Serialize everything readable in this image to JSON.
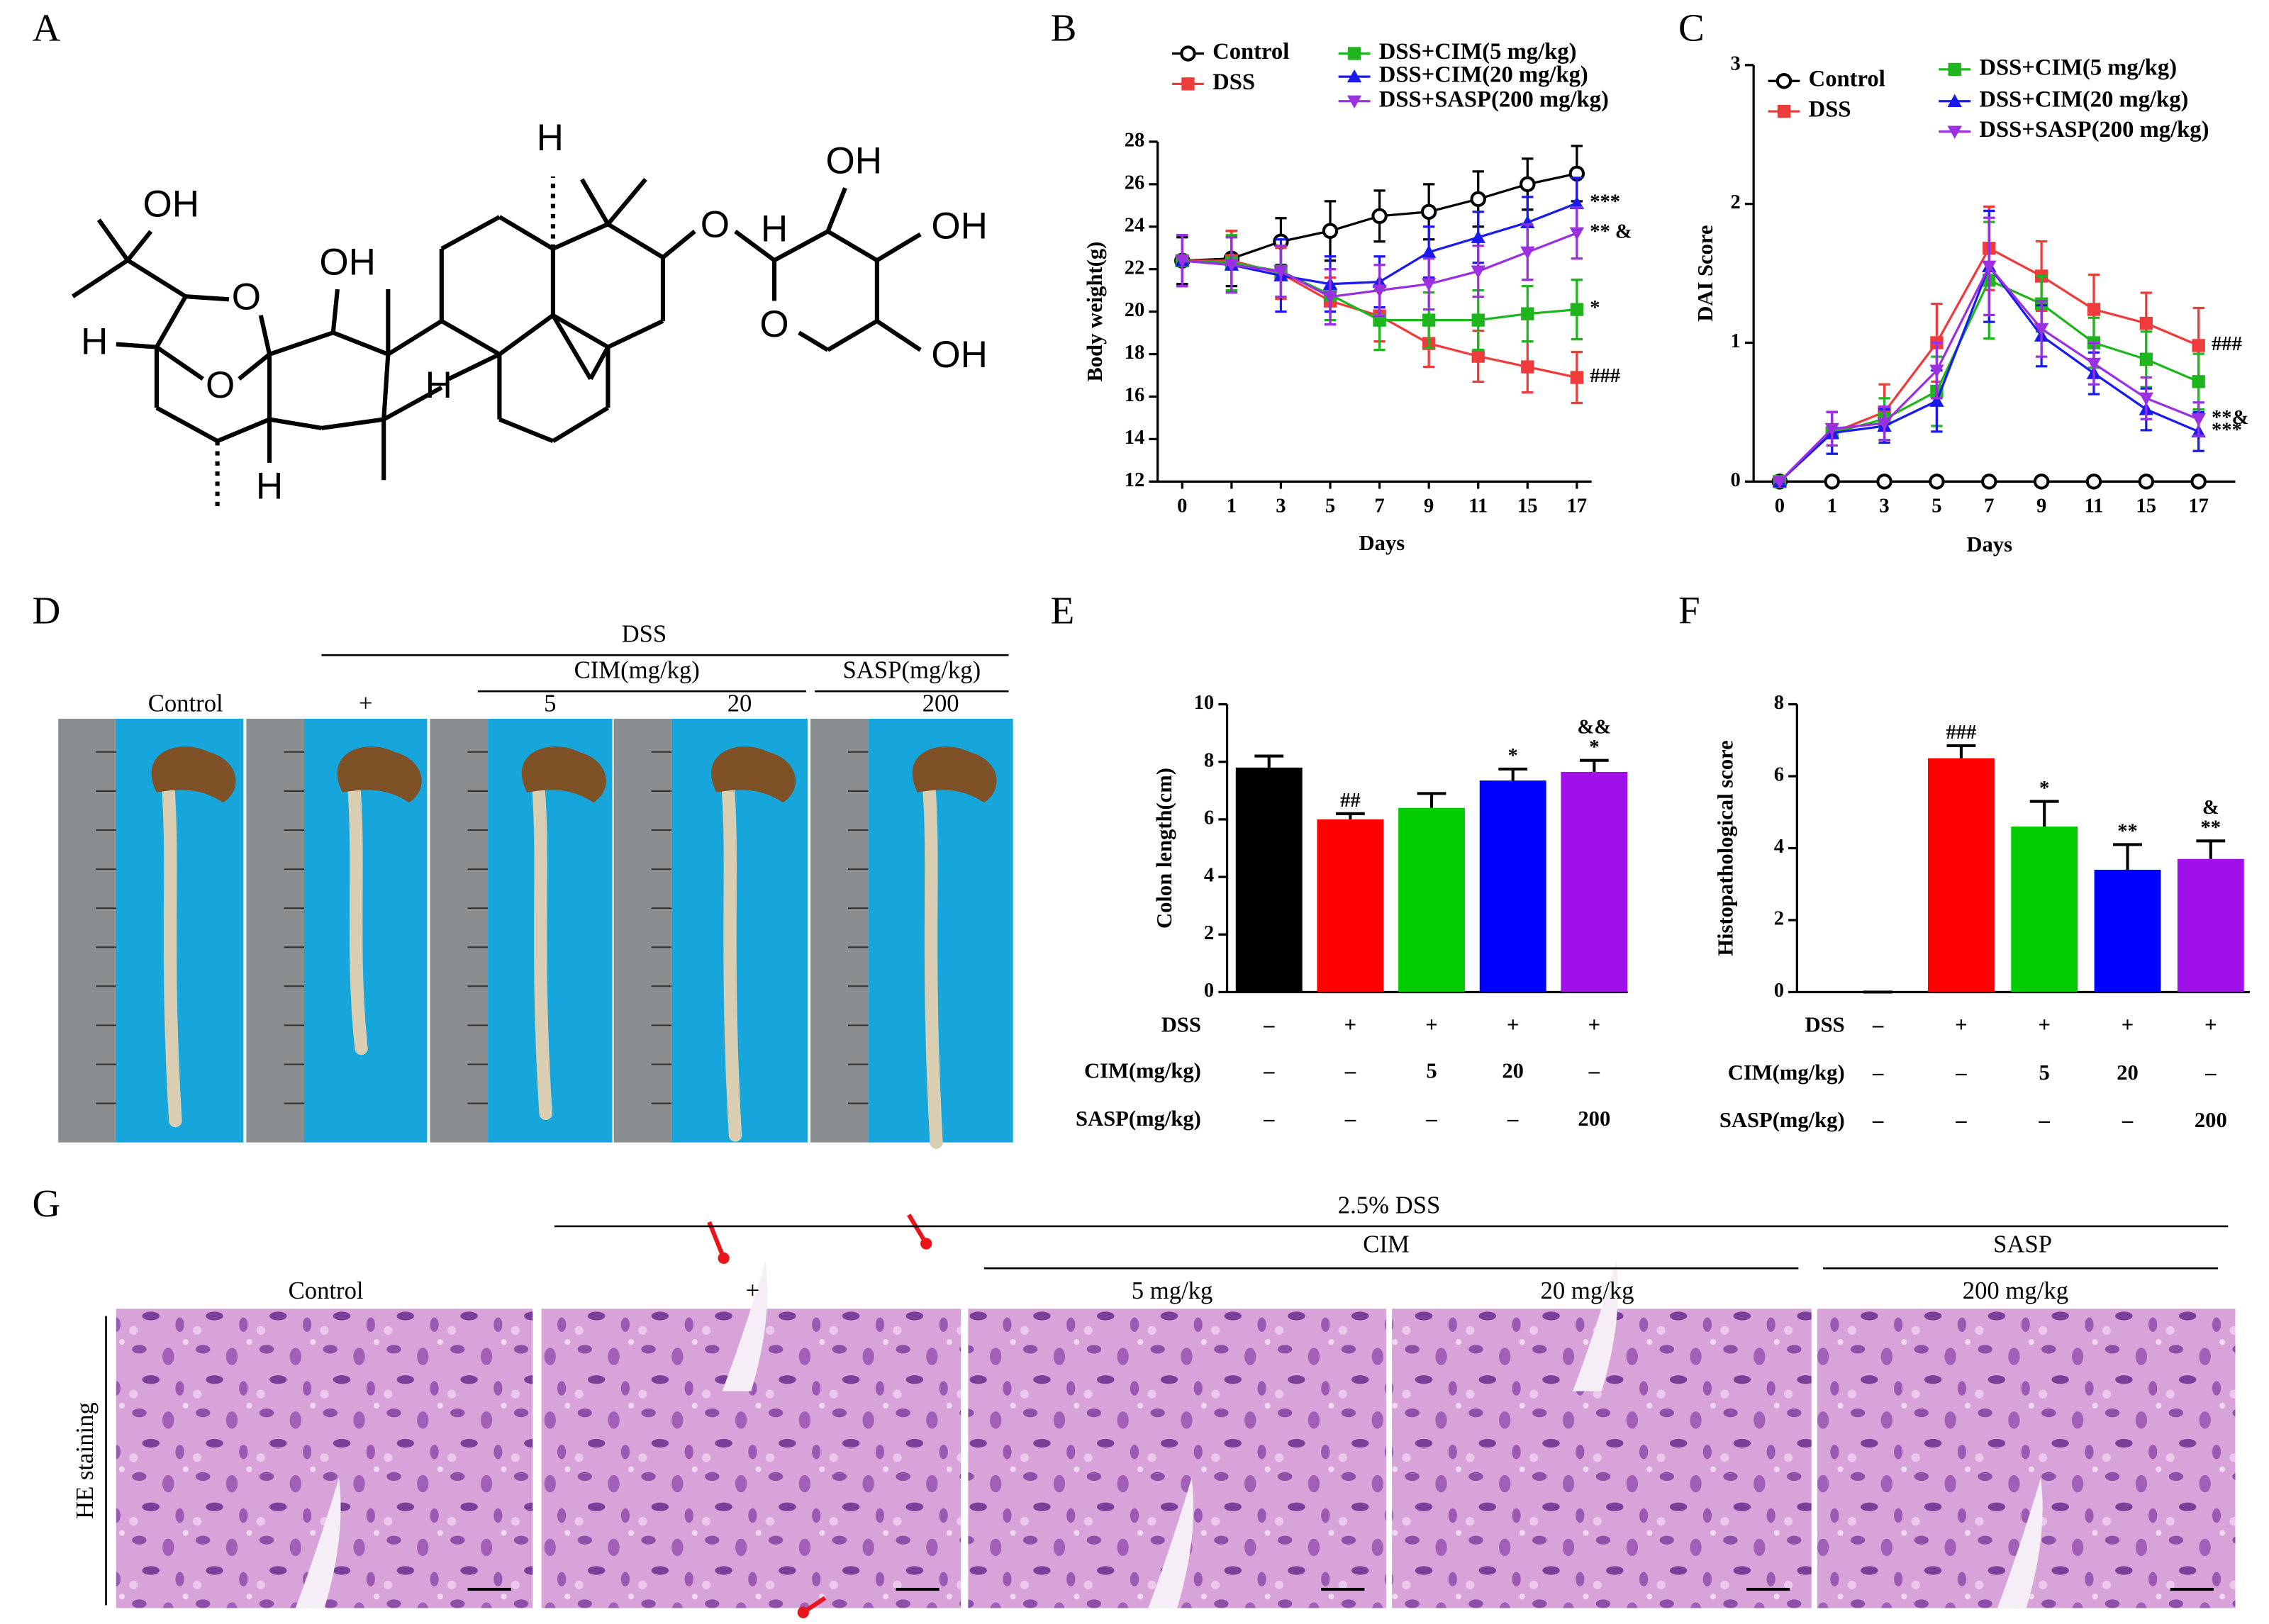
{
  "panel_labels": [
    "A",
    "B",
    "C",
    "D",
    "E",
    "F",
    "G"
  ],
  "structure": {
    "labels": [
      "OH",
      "O",
      "H",
      "O",
      "OH",
      "H",
      "H",
      "H",
      "O",
      "H",
      "OH",
      "OH",
      "O",
      "OH"
    ]
  },
  "chart_data": [
    {
      "type": "line",
      "ylabel": "Body weight(g)",
      "xlabel": "Days",
      "categories": [
        "0",
        "1",
        "3",
        "5",
        "7",
        "9",
        "11",
        "15",
        "17"
      ],
      "ylim": [
        12,
        28
      ],
      "yticks": [
        12,
        14,
        16,
        18,
        20,
        22,
        24,
        26,
        28
      ],
      "series": [
        {
          "name": "Control",
          "color": "#000000",
          "marker": "circle",
          "values": [
            22.4,
            22.5,
            23.3,
            23.8,
            24.5,
            24.7,
            25.3,
            26.0,
            26.5
          ],
          "errors": [
            1.1,
            1.3,
            1.1,
            1.4,
            1.2,
            1.3,
            1.3,
            1.2,
            1.3
          ],
          "annotation": null
        },
        {
          "name": "DSS",
          "color": "#ee3b3b",
          "marker": "square",
          "values": [
            22.4,
            22.4,
            21.8,
            20.5,
            19.8,
            18.5,
            17.9,
            17.4,
            16.9
          ],
          "errors": [
            1.2,
            1.4,
            1.2,
            1.1,
            1.2,
            1.1,
            1.2,
            1.2,
            1.2
          ],
          "annotation": "###"
        },
        {
          "name": "DSS+CIM(5 mg/kg)",
          "color": "#1fb51f",
          "marker": "square",
          "values": [
            22.4,
            22.3,
            21.9,
            20.8,
            19.6,
            19.6,
            19.6,
            19.9,
            20.1
          ],
          "errors": [
            1.2,
            1.3,
            1.2,
            1.2,
            1.4,
            1.3,
            1.4,
            1.3,
            1.4
          ],
          "annotation": "*"
        },
        {
          "name": "DSS+CIM(20 mg/kg)",
          "color": "#1a1aee",
          "marker": "triangle-up",
          "values": [
            22.4,
            22.2,
            21.7,
            21.3,
            21.4,
            22.8,
            23.5,
            24.2,
            25.1
          ],
          "errors": [
            1.2,
            1.3,
            1.7,
            1.3,
            1.2,
            1.2,
            1.2,
            1.2,
            1.2
          ],
          "annotation": "***"
        },
        {
          "name": "DSS+SASP(200 mg/kg)",
          "color": "#9b30e0",
          "marker": "triangle-down",
          "values": [
            22.4,
            22.2,
            21.9,
            20.7,
            21.0,
            21.3,
            21.9,
            22.8,
            23.7
          ],
          "errors": [
            1.2,
            1.3,
            1.2,
            1.3,
            1.2,
            1.2,
            1.2,
            1.3,
            1.2
          ],
          "annotation": "** &"
        }
      ]
    },
    {
      "type": "line",
      "ylabel": "DAI Score",
      "xlabel": "Days",
      "categories": [
        "0",
        "1",
        "3",
        "5",
        "7",
        "9",
        "11",
        "15",
        "17"
      ],
      "ylim": [
        0,
        3
      ],
      "yticks": [
        0,
        1,
        2,
        3
      ],
      "series": [
        {
          "name": "Control",
          "color": "#000000",
          "marker": "circle",
          "values": [
            0,
            0,
            0,
            0,
            0,
            0,
            0,
            0,
            0
          ],
          "errors": [
            0,
            0,
            0,
            0,
            0,
            0,
            0,
            0,
            0
          ],
          "annotation": null
        },
        {
          "name": "DSS",
          "color": "#ee3b3b",
          "marker": "square",
          "values": [
            0,
            0.35,
            0.5,
            1.0,
            1.68,
            1.48,
            1.24,
            1.14,
            0.98
          ],
          "errors": [
            0,
            0.15,
            0.2,
            0.28,
            0.3,
            0.25,
            0.25,
            0.22,
            0.27
          ],
          "annotation": "###"
        },
        {
          "name": "DSS+CIM(5 mg/kg)",
          "color": "#1fb51f",
          "marker": "square",
          "values": [
            0,
            0.35,
            0.45,
            0.65,
            1.45,
            1.28,
            1.0,
            0.88,
            0.72
          ],
          "errors": [
            0,
            0.15,
            0.15,
            0.25,
            0.42,
            0.2,
            0.18,
            0.2,
            0.2
          ],
          "annotation": null
        },
        {
          "name": "DSS+CIM(20 mg/kg)",
          "color": "#1a1aee",
          "marker": "triangle-up",
          "values": [
            0,
            0.35,
            0.4,
            0.58,
            1.55,
            1.05,
            0.78,
            0.52,
            0.36
          ],
          "errors": [
            0,
            0.15,
            0.12,
            0.22,
            0.4,
            0.22,
            0.15,
            0.15,
            0.14
          ],
          "annotation": "***"
        },
        {
          "name": "DSS+SASP(200 mg/kg)",
          "color": "#9b30e0",
          "marker": "triangle-down",
          "values": [
            0,
            0.38,
            0.42,
            0.8,
            1.55,
            1.1,
            0.85,
            0.6,
            0.45
          ],
          "errors": [
            0,
            0.12,
            0.12,
            0.2,
            0.35,
            0.2,
            0.15,
            0.15,
            0.12
          ],
          "annotation": "**&"
        }
      ]
    },
    {
      "type": "bar",
      "ylabel": "Colon length(cm)",
      "ylim": [
        0,
        10
      ],
      "yticks": [
        0,
        2,
        4,
        6,
        8,
        10
      ],
      "values": [
        7.8,
        6.0,
        6.4,
        7.35,
        7.65
      ],
      "errors": [
        0.4,
        0.2,
        0.5,
        0.4,
        0.4
      ],
      "colors": [
        "#000000",
        "#ff0000",
        "#00cc00",
        "#0000ff",
        "#a010e8"
      ],
      "annotations": [
        null,
        "##",
        null,
        "*",
        "*"
      ],
      "annotations_top": [
        null,
        null,
        null,
        null,
        "&&"
      ],
      "conditions": [
        {
          "label": "DSS",
          "values": [
            "–",
            "+",
            "+",
            "+",
            "+"
          ]
        },
        {
          "label": "CIM(mg/kg)",
          "values": [
            "–",
            "–",
            "5",
            "20",
            "–"
          ]
        },
        {
          "label": "SASP(mg/kg)",
          "values": [
            "–",
            "–",
            "–",
            "–",
            "200"
          ]
        }
      ]
    },
    {
      "type": "bar",
      "ylabel": "Histopathological score",
      "ylim": [
        0,
        8
      ],
      "yticks": [
        0,
        2,
        4,
        6,
        8
      ],
      "values": [
        0,
        6.5,
        4.6,
        3.4,
        3.7
      ],
      "errors": [
        0,
        0.35,
        0.7,
        0.7,
        0.5
      ],
      "colors": [
        "#000000",
        "#ff0000",
        "#00cc00",
        "#0000ff",
        "#a010e8"
      ],
      "annotations": [
        null,
        "###",
        "*",
        "**",
        "**"
      ],
      "annotations_top": [
        null,
        null,
        null,
        null,
        "&"
      ],
      "conditions": [
        {
          "label": "DSS",
          "values": [
            "–",
            "+",
            "+",
            "+",
            "+"
          ]
        },
        {
          "label": "CIM(mg/kg)",
          "values": [
            "–",
            "–",
            "5",
            "20",
            "–"
          ]
        },
        {
          "label": "SASP(mg/kg)",
          "values": [
            "–",
            "–",
            "–",
            "–",
            "200"
          ]
        }
      ]
    }
  ],
  "panel_d": {
    "group": "DSS",
    "subgroups": [
      "CIM(mg/kg)",
      "SASP(mg/kg)"
    ],
    "lanes": [
      "Control",
      "+",
      "5",
      "20",
      "200"
    ]
  },
  "panel_g": {
    "group": "2.5% DSS",
    "subgroups": [
      "CIM",
      "SASP"
    ],
    "lanes": [
      "Control",
      "+",
      "5 mg/kg",
      "20 mg/kg",
      "200 mg/kg"
    ],
    "stain": "HE staining"
  }
}
